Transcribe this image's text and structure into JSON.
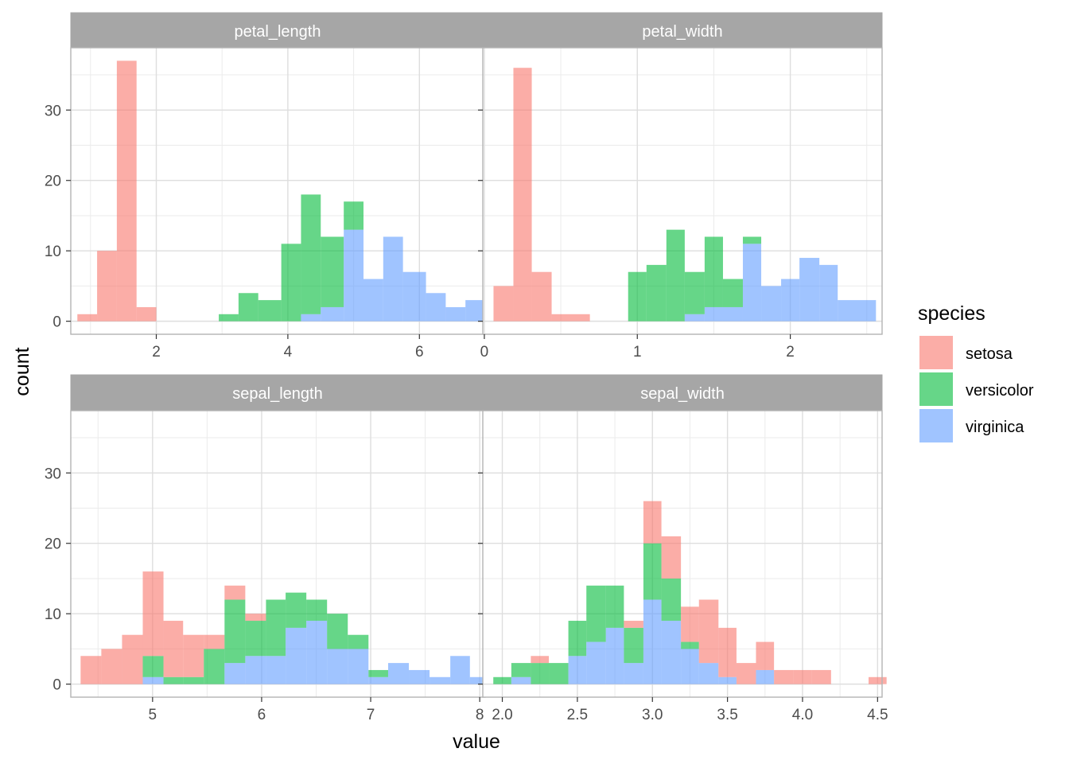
{
  "chart_data": {
    "type": "histogram",
    "xlabel": "value",
    "ylabel": "count",
    "ylim": [
      -1.85,
      38.85
    ],
    "y_ticks": [
      0,
      10,
      20,
      30
    ],
    "stacking": "stacked",
    "opacity": 0.6,
    "legend": {
      "title": "species",
      "position": "right",
      "entries": [
        {
          "name": "setosa",
          "color": "#F8766D"
        },
        {
          "name": "versicolor",
          "color": "#00BA38"
        },
        {
          "name": "virginica",
          "color": "#619CFF"
        }
      ]
    },
    "panels": [
      {
        "strip": "petal_length",
        "xlim": [
          0.7,
          7.0
        ],
        "x_ticks": [
          2,
          4,
          6
        ],
        "x_tick_labels": [
          "2",
          "4",
          "6"
        ],
        "bins": [
          {
            "x0": 0.8,
            "x1": 1.1,
            "setosa": 1,
            "versicolor": 0,
            "virginica": 0
          },
          {
            "x0": 1.1,
            "x1": 1.4,
            "setosa": 10,
            "versicolor": 0,
            "virginica": 0
          },
          {
            "x0": 1.4,
            "x1": 1.7,
            "setosa": 37,
            "versicolor": 0,
            "virginica": 0
          },
          {
            "x0": 1.7,
            "x1": 2.0,
            "setosa": 2,
            "versicolor": 0,
            "virginica": 0
          },
          {
            "x0": 2.95,
            "x1": 3.25,
            "setosa": 0,
            "versicolor": 1,
            "virginica": 0
          },
          {
            "x0": 3.25,
            "x1": 3.55,
            "setosa": 0,
            "versicolor": 4,
            "virginica": 0
          },
          {
            "x0": 3.55,
            "x1": 3.9,
            "setosa": 0,
            "versicolor": 3,
            "virginica": 0
          },
          {
            "x0": 3.9,
            "x1": 4.2,
            "setosa": 0,
            "versicolor": 11,
            "virginica": 0
          },
          {
            "x0": 4.2,
            "x1": 4.5,
            "setosa": 0,
            "versicolor": 17,
            "virginica": 1
          },
          {
            "x0": 4.5,
            "x1": 4.85,
            "setosa": 0,
            "versicolor": 10,
            "virginica": 2
          },
          {
            "x0": 4.85,
            "x1": 5.15,
            "setosa": 0,
            "versicolor": 4,
            "virginica": 13
          },
          {
            "x0": 5.15,
            "x1": 5.45,
            "setosa": 0,
            "versicolor": 0,
            "virginica": 6
          },
          {
            "x0": 5.45,
            "x1": 5.75,
            "setosa": 0,
            "versicolor": 0,
            "virginica": 12
          },
          {
            "x0": 5.75,
            "x1": 6.1,
            "setosa": 0,
            "versicolor": 0,
            "virginica": 7
          },
          {
            "x0": 6.1,
            "x1": 6.4,
            "setosa": 0,
            "versicolor": 0,
            "virginica": 4
          },
          {
            "x0": 6.4,
            "x1": 6.7,
            "setosa": 0,
            "versicolor": 0,
            "virginica": 2
          },
          {
            "x0": 6.7,
            "x1": 7.0,
            "setosa": 0,
            "versicolor": 0,
            "virginica": 3
          }
        ]
      },
      {
        "strip": "petal_width",
        "xlim": [
          -0.01,
          2.6
        ],
        "x_ticks": [
          0,
          1,
          2
        ],
        "x_tick_labels": [
          "0",
          "1",
          "2"
        ],
        "bins": [
          {
            "x0": 0.06,
            "x1": 0.19,
            "setosa": 5,
            "versicolor": 0,
            "virginica": 0
          },
          {
            "x0": 0.19,
            "x1": 0.31,
            "setosa": 36,
            "versicolor": 0,
            "virginica": 0
          },
          {
            "x0": 0.31,
            "x1": 0.44,
            "setosa": 7,
            "versicolor": 0,
            "virginica": 0
          },
          {
            "x0": 0.44,
            "x1": 0.69,
            "setosa": 1,
            "versicolor": 0,
            "virginica": 0
          },
          {
            "x0": 0.94,
            "x1": 1.06,
            "setosa": 0,
            "versicolor": 7,
            "virginica": 0
          },
          {
            "x0": 1.06,
            "x1": 1.19,
            "setosa": 0,
            "versicolor": 8,
            "virginica": 0
          },
          {
            "x0": 1.19,
            "x1": 1.31,
            "setosa": 0,
            "versicolor": 13,
            "virginica": 0
          },
          {
            "x0": 1.31,
            "x1": 1.44,
            "setosa": 0,
            "versicolor": 6,
            "virginica": 1
          },
          {
            "x0": 1.44,
            "x1": 1.56,
            "setosa": 0,
            "versicolor": 10,
            "virginica": 2
          },
          {
            "x0": 1.56,
            "x1": 1.69,
            "setosa": 0,
            "versicolor": 4,
            "virginica": 2
          },
          {
            "x0": 1.69,
            "x1": 1.81,
            "setosa": 0,
            "versicolor": 1,
            "virginica": 11
          },
          {
            "x0": 1.81,
            "x1": 1.94,
            "setosa": 0,
            "versicolor": 0,
            "virginica": 5
          },
          {
            "x0": 1.94,
            "x1": 2.06,
            "setosa": 0,
            "versicolor": 0,
            "virginica": 6
          },
          {
            "x0": 2.06,
            "x1": 2.19,
            "setosa": 0,
            "versicolor": 0,
            "virginica": 9
          },
          {
            "x0": 2.19,
            "x1": 2.31,
            "setosa": 0,
            "versicolor": 0,
            "virginica": 8
          },
          {
            "x0": 2.31,
            "x1": 2.56,
            "setosa": 0,
            "versicolor": 0,
            "virginica": 3
          }
        ]
      },
      {
        "strip": "sepal_length",
        "xlim": [
          4.25,
          8.05
        ],
        "x_ticks": [
          5,
          6,
          7,
          8
        ],
        "x_tick_labels": [
          "5",
          "6",
          "7",
          "8"
        ],
        "bins": [
          {
            "x0": 4.34,
            "x1": 4.53,
            "setosa": 4,
            "versicolor": 0,
            "virginica": 0
          },
          {
            "x0": 4.53,
            "x1": 4.72,
            "setosa": 5,
            "versicolor": 0,
            "virginica": 0
          },
          {
            "x0": 4.72,
            "x1": 4.91,
            "setosa": 7,
            "versicolor": 0,
            "virginica": 0
          },
          {
            "x0": 4.91,
            "x1": 5.1,
            "setosa": 12,
            "versicolor": 3,
            "virginica": 1
          },
          {
            "x0": 5.1,
            "x1": 5.28,
            "setosa": 8,
            "versicolor": 1,
            "virginica": 0
          },
          {
            "x0": 5.28,
            "x1": 5.47,
            "setosa": 6,
            "versicolor": 1,
            "virginica": 0
          },
          {
            "x0": 5.47,
            "x1": 5.66,
            "setosa": 2,
            "versicolor": 5,
            "virginica": 0
          },
          {
            "x0": 5.66,
            "x1": 5.85,
            "setosa": 2,
            "versicolor": 9,
            "virginica": 3
          },
          {
            "x0": 5.85,
            "x1": 6.04,
            "setosa": 1,
            "versicolor": 5,
            "virginica": 4
          },
          {
            "x0": 6.04,
            "x1": 6.22,
            "setosa": 0,
            "versicolor": 8,
            "virginica": 4
          },
          {
            "x0": 6.22,
            "x1": 6.41,
            "setosa": 0,
            "versicolor": 5,
            "virginica": 8
          },
          {
            "x0": 6.41,
            "x1": 6.6,
            "setosa": 0,
            "versicolor": 3,
            "virginica": 9
          },
          {
            "x0": 6.6,
            "x1": 6.79,
            "setosa": 0,
            "versicolor": 5,
            "virginica": 5
          },
          {
            "x0": 6.79,
            "x1": 6.98,
            "setosa": 0,
            "versicolor": 2,
            "virginica": 5
          },
          {
            "x0": 6.98,
            "x1": 7.16,
            "setosa": 0,
            "versicolor": 1,
            "virginica": 1
          },
          {
            "x0": 7.16,
            "x1": 7.35,
            "setosa": 0,
            "versicolor": 0,
            "virginica": 3
          },
          {
            "x0": 7.35,
            "x1": 7.54,
            "setosa": 0,
            "versicolor": 0,
            "virginica": 2
          },
          {
            "x0": 7.54,
            "x1": 7.73,
            "setosa": 0,
            "versicolor": 0,
            "virginica": 1
          },
          {
            "x0": 7.73,
            "x1": 7.91,
            "setosa": 0,
            "versicolor": 0,
            "virginica": 4
          },
          {
            "x0": 7.91,
            "x1": 8.1,
            "setosa": 0,
            "versicolor": 0,
            "virginica": 1
          }
        ]
      },
      {
        "strip": "sepal_width",
        "xlim": [
          1.87,
          4.53
        ],
        "x_ticks": [
          2.0,
          2.5,
          3.0,
          3.5,
          4.0,
          4.5
        ],
        "x_tick_labels": [
          "2.0",
          "2.5",
          "3.0",
          "3.5",
          "4.0",
          "4.5"
        ],
        "bins": [
          {
            "x0": 1.94,
            "x1": 2.06,
            "setosa": 0,
            "versicolor": 1,
            "virginica": 0
          },
          {
            "x0": 2.06,
            "x1": 2.19,
            "setosa": 0,
            "versicolor": 2,
            "virginica": 1
          },
          {
            "x0": 2.19,
            "x1": 2.31,
            "setosa": 1,
            "versicolor": 3,
            "virginica": 0
          },
          {
            "x0": 2.31,
            "x1": 2.44,
            "setosa": 0,
            "versicolor": 3,
            "virginica": 0
          },
          {
            "x0": 2.44,
            "x1": 2.56,
            "setosa": 0,
            "versicolor": 5,
            "virginica": 4
          },
          {
            "x0": 2.56,
            "x1": 2.69,
            "setosa": 0,
            "versicolor": 8,
            "virginica": 6
          },
          {
            "x0": 2.69,
            "x1": 2.81,
            "setosa": 0,
            "versicolor": 6,
            "virginica": 8
          },
          {
            "x0": 2.81,
            "x1": 2.94,
            "setosa": 1,
            "versicolor": 5,
            "virginica": 3
          },
          {
            "x0": 2.94,
            "x1": 3.06,
            "setosa": 6,
            "versicolor": 8,
            "virginica": 12
          },
          {
            "x0": 3.06,
            "x1": 3.19,
            "setosa": 6,
            "versicolor": 6,
            "virginica": 9
          },
          {
            "x0": 3.19,
            "x1": 3.31,
            "setosa": 5,
            "versicolor": 1,
            "virginica": 5
          },
          {
            "x0": 3.31,
            "x1": 3.44,
            "setosa": 9,
            "versicolor": 0,
            "virginica": 3
          },
          {
            "x0": 3.44,
            "x1": 3.56,
            "setosa": 7,
            "versicolor": 0,
            "virginica": 1
          },
          {
            "x0": 3.56,
            "x1": 3.69,
            "setosa": 3,
            "versicolor": 0,
            "virginica": 0
          },
          {
            "x0": 3.69,
            "x1": 3.81,
            "setosa": 4,
            "versicolor": 0,
            "virginica": 2
          },
          {
            "x0": 3.81,
            "x1": 3.94,
            "setosa": 2,
            "versicolor": 0,
            "virginica": 0
          },
          {
            "x0": 3.94,
            "x1": 4.06,
            "setosa": 2,
            "versicolor": 0,
            "virginica": 0
          },
          {
            "x0": 4.06,
            "x1": 4.19,
            "setosa": 2,
            "versicolor": 0,
            "virginica": 0
          },
          {
            "x0": 4.19,
            "x1": 4.31,
            "setosa": 0,
            "versicolor": 0,
            "virginica": 0
          },
          {
            "x0": 4.31,
            "x1": 4.44,
            "setosa": 0,
            "versicolor": 0,
            "virginica": 0
          },
          {
            "x0": 4.44,
            "x1": 4.56,
            "setosa": 1,
            "versicolor": 0,
            "virginica": 0
          }
        ]
      }
    ]
  }
}
